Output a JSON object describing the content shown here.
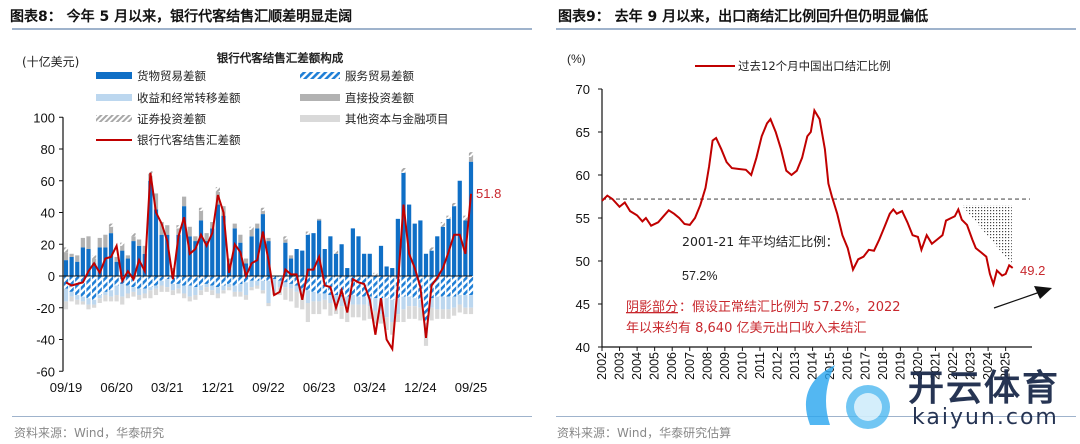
{
  "left": {
    "title": "图表8：  今年 5 月以来，银行代客结售汇顺差明显走阔",
    "source": "资料来源：Wind，华泰研究"
  },
  "right": {
    "title": "图表9：  去年 9 月以来，出口商结汇比例回升但仍明显偏低",
    "source": "资料来源：Wind，华泰研究估算"
  },
  "watermark": {
    "cn": "开云体育",
    "en": "kaiyun.com"
  },
  "colors": {
    "goods": "#0f6fc6",
    "services": "#1f7fd6",
    "income": "#bcd7ef",
    "fdi": "#b2b2b2",
    "securities": "#a8a8a8",
    "other": "#d9d9d9",
    "line": "#c00000",
    "text_red": "#c8282e"
  },
  "chart_data": [
    {
      "type": "bar",
      "title": "银行代客结售汇差额构成",
      "ylabel": "(十亿美元)",
      "ylim": [
        -60,
        100
      ],
      "yticks": [
        "100",
        "80",
        "60",
        "40",
        "20",
        "0",
        "-20",
        "-40",
        "-60"
      ],
      "xticks": [
        "09/19",
        "06/20",
        "03/21",
        "12/21",
        "09/22",
        "06/23",
        "03/24",
        "12/24",
        "09/25"
      ],
      "legend": {
        "goods": "货物贸易差额",
        "services": "服务贸易差额",
        "income": "收益和经常转移差额",
        "fdi": "直接投资差额",
        "securities": "证券投资差额",
        "other": "其他资本与金融项目",
        "net": "银行代客结售汇差额"
      },
      "last_label": "51.8",
      "series": {
        "goods": [
          10,
          12,
          9,
          18,
          17,
          8,
          18,
          18,
          27,
          9,
          16,
          11,
          22,
          19,
          14,
          60,
          42,
          26,
          26,
          0,
          26,
          44,
          25,
          22,
          35,
          22,
          30,
          45,
          38,
          8,
          30,
          21,
          8,
          25,
          30,
          39,
          22,
          0,
          0,
          21,
          11,
          17,
          16,
          26,
          27,
          35,
          17,
          25,
          14,
          20,
          5,
          30,
          25,
          14,
          14,
          0,
          19,
          6,
          5,
          36,
          65,
          45,
          33,
          35,
          14,
          16,
          25,
          31,
          36,
          44,
          60,
          35,
          72
        ],
        "services": [
          -8,
          -10,
          -12,
          -13,
          -14,
          -15,
          -12,
          -10,
          -9,
          -6,
          -5,
          -6,
          -7,
          -8,
          -8,
          -7,
          -6,
          -3,
          -2,
          -5,
          -5,
          -6,
          -6,
          -7,
          -6,
          -5,
          -6,
          -7,
          -6,
          -5,
          -6,
          -5,
          -4,
          -3,
          -3,
          -3,
          -3,
          -2,
          -3,
          -4,
          -5,
          -6,
          -8,
          -9,
          -10,
          -11,
          -11,
          -12,
          -12,
          -13,
          -13,
          -12,
          -13,
          -13,
          -13,
          -14,
          -14,
          -14,
          -15,
          -14,
          -13,
          -13,
          -14,
          -15,
          -30,
          -14,
          -13,
          -13,
          -13,
          -13,
          -12,
          -12,
          -12
        ],
        "income": [
          -8,
          -3,
          -3,
          -3,
          -4,
          -3,
          -2,
          -2,
          -4,
          -6,
          -8,
          -5,
          -3,
          -4,
          -3,
          -2,
          -2,
          -3,
          -5,
          -4,
          -3,
          -5,
          -7,
          -5,
          -3,
          -2,
          -3,
          -4,
          -3,
          -2,
          -4,
          -5,
          -8,
          -4,
          -3,
          -6,
          -14,
          -8,
          -4,
          -3,
          -3,
          -4,
          -5,
          -8,
          -6,
          -5,
          -4,
          -5,
          -6,
          -6,
          -8,
          -6,
          -5,
          -5,
          -6,
          -8,
          -10,
          -12,
          -14,
          -10,
          -8,
          -6,
          -5,
          -5,
          -6,
          -6,
          -8,
          -8,
          -8,
          -7,
          -6,
          -8,
          -8
        ],
        "fdi": [
          5,
          2,
          4,
          6,
          8,
          3,
          6,
          8,
          4,
          3,
          3,
          2,
          3,
          4,
          5,
          3,
          10,
          8,
          6,
          5,
          4,
          6,
          6,
          3,
          6,
          5,
          4,
          8,
          6,
          3,
          3,
          5,
          3,
          4,
          3,
          2,
          2,
          0,
          0,
          2,
          2,
          0,
          0,
          0,
          0,
          1,
          0,
          0,
          0,
          0,
          0,
          0,
          0,
          0,
          0,
          0,
          0,
          0,
          0,
          0,
          0,
          0,
          0,
          0,
          0,
          0,
          0,
          0,
          0,
          0,
          0,
          0,
          3
        ],
        "securities": [
          3,
          0,
          0,
          0,
          0,
          2,
          0,
          0,
          2,
          0,
          2,
          0,
          2,
          0,
          0,
          3,
          0,
          0,
          0,
          0,
          2,
          0,
          0,
          0,
          2,
          0,
          0,
          3,
          0,
          0,
          0,
          0,
          0,
          2,
          0,
          2,
          0,
          0,
          0,
          2,
          0,
          0,
          0,
          2,
          0,
          0,
          0,
          0,
          2,
          0,
          0,
          0,
          0,
          0,
          0,
          2,
          0,
          0,
          0,
          0,
          3,
          0,
          0,
          0,
          0,
          2,
          0,
          3,
          2,
          2,
          0,
          3,
          3
        ],
        "other": [
          -5,
          -3,
          -3,
          -2,
          -3,
          -2,
          -3,
          -4,
          -3,
          -4,
          -5,
          -3,
          -3,
          -3,
          -3,
          -5,
          -4,
          -4,
          -3,
          -3,
          -3,
          -3,
          -3,
          -3,
          -3,
          -3,
          -3,
          -3,
          -2,
          -2,
          -3,
          -3,
          -3,
          -2,
          -2,
          -2,
          -2,
          -2,
          -5,
          -8,
          -8,
          -10,
          -8,
          -12,
          -8,
          -8,
          -6,
          -8,
          -6,
          -8,
          -8,
          -8,
          -8,
          -10,
          -8,
          -8,
          -6,
          -8,
          -8,
          -5,
          -8,
          -8,
          -8,
          -8,
          -8,
          -8,
          -6,
          -6,
          -6,
          -5,
          -5,
          -4,
          -4
        ],
        "net": [
          -4,
          -6,
          -5,
          -4,
          3,
          8,
          2,
          11,
          12,
          19,
          -3,
          3,
          -2,
          10,
          3,
          65,
          40,
          33,
          22,
          -2,
          25,
          37,
          14,
          17,
          26,
          19,
          27,
          51,
          40,
          2,
          20,
          15,
          0,
          8,
          10,
          28,
          10,
          -12,
          -10,
          4,
          1,
          1,
          -15,
          4,
          4,
          12,
          -6,
          -7,
          -20,
          -9,
          -23,
          -2,
          -4,
          -5,
          -15,
          -37,
          -14,
          -40,
          -46,
          -5,
          45,
          14,
          5,
          -7,
          -39,
          -6,
          -1,
          5,
          15,
          26,
          26,
          14,
          51.8
        ]
      }
    },
    {
      "type": "line",
      "ylabel": "(%)",
      "ylim": [
        40,
        70
      ],
      "yticks": [
        "70",
        "65",
        "60",
        "55",
        "50",
        "45",
        "40"
      ],
      "xticks": [
        "2002",
        "2003",
        "2004",
        "2005",
        "2006",
        "2007",
        "2008",
        "2009",
        "2010",
        "2011",
        "2012",
        "2013",
        "2014",
        "2015",
        "2016",
        "2017",
        "2018",
        "2019",
        "2020",
        "2021",
        "2022",
        "2023",
        "2024",
        "2025"
      ],
      "legend": "过去12个月中国出口结汇比例",
      "reference_line": 57.2,
      "annotation_avg_1": "2001-21  年平均结汇比例：",
      "annotation_avg_2": "57.2%",
      "annotation_shade_label": "阴影部分",
      "annotation_shade_1": "：假设正常结汇比例为 57.2%，2022",
      "annotation_shade_2": "年以来约有 8,640 亿美元出口收入未结汇",
      "last_label": "49.2",
      "points": [
        [
          2002,
          57
        ],
        [
          2002.3,
          57.6
        ],
        [
          2002.6,
          57.2
        ],
        [
          2003,
          56.3
        ],
        [
          2003.3,
          56.8
        ],
        [
          2003.6,
          55.8
        ],
        [
          2004,
          55.3
        ],
        [
          2004.3,
          54.6
        ],
        [
          2004.5,
          55
        ],
        [
          2004.8,
          54.1
        ],
        [
          2005.2,
          54.5
        ],
        [
          2005.5,
          55.2
        ],
        [
          2005.8,
          55.9
        ],
        [
          2006.1,
          55.5
        ],
        [
          2006.4,
          55
        ],
        [
          2006.7,
          54.3
        ],
        [
          2007,
          54.2
        ],
        [
          2007.3,
          55
        ],
        [
          2007.6,
          56.5
        ],
        [
          2007.9,
          58.5
        ],
        [
          2008.1,
          61
        ],
        [
          2008.3,
          64
        ],
        [
          2008.5,
          64.3
        ],
        [
          2008.8,
          63
        ],
        [
          2009.1,
          61.5
        ],
        [
          2009.4,
          60.8
        ],
        [
          2009.8,
          60.7
        ],
        [
          2010.2,
          60.6
        ],
        [
          2010.5,
          60
        ],
        [
          2010.8,
          62
        ],
        [
          2011.1,
          64.5
        ],
        [
          2011.4,
          66
        ],
        [
          2011.6,
          66.5
        ],
        [
          2011.9,
          65
        ],
        [
          2012.2,
          63
        ],
        [
          2012.5,
          60.5
        ],
        [
          2012.8,
          60
        ],
        [
          2013.1,
          60.5
        ],
        [
          2013.4,
          62
        ],
        [
          2013.7,
          64.5
        ],
        [
          2013.9,
          65
        ],
        [
          2014.1,
          67.5
        ],
        [
          2014.4,
          66.5
        ],
        [
          2014.7,
          63
        ],
        [
          2014.9,
          59
        ],
        [
          2015.1,
          57.5
        ],
        [
          2015.4,
          55.5
        ],
        [
          2015.7,
          53
        ],
        [
          2016,
          51.5
        ],
        [
          2016.3,
          49
        ],
        [
          2016.6,
          50.2
        ],
        [
          2016.9,
          50.5
        ],
        [
          2017.2,
          51.3
        ],
        [
          2017.5,
          51.2
        ],
        [
          2017.8,
          52.5
        ],
        [
          2018.1,
          54
        ],
        [
          2018.4,
          55.5
        ],
        [
          2018.6,
          56
        ],
        [
          2018.8,
          55.5
        ],
        [
          2019.1,
          55.8
        ],
        [
          2019.4,
          54.5
        ],
        [
          2019.7,
          53
        ],
        [
          2020,
          52.8
        ],
        [
          2020.2,
          51.3
        ],
        [
          2020.5,
          53
        ],
        [
          2020.8,
          52
        ],
        [
          2021.1,
          52.5
        ],
        [
          2021.4,
          53
        ],
        [
          2021.6,
          54.7
        ],
        [
          2021.9,
          55
        ],
        [
          2022.1,
          55.2
        ],
        [
          2022.3,
          56
        ],
        [
          2022.5,
          54.8
        ],
        [
          2022.8,
          54.2
        ],
        [
          2023.1,
          52.5
        ],
        [
          2023.3,
          51.5
        ],
        [
          2023.6,
          51
        ],
        [
          2023.9,
          50.5
        ],
        [
          2024.1,
          48.5
        ],
        [
          2024.3,
          47.3
        ],
        [
          2024.5,
          48.9
        ],
        [
          2024.8,
          48.3
        ],
        [
          2025,
          48.5
        ],
        [
          2025.2,
          49.5
        ],
        [
          2025.4,
          49.2
        ]
      ]
    }
  ]
}
